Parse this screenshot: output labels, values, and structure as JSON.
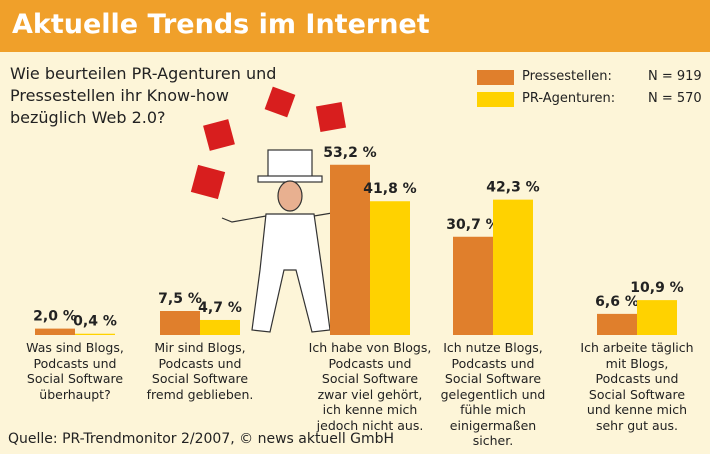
{
  "chart_data": {
    "type": "bar",
    "title": "Aktuelle Trends im Internet",
    "subtitle": "Wie beurteilen PR-Agenturen und\nPressestellen ihr Know-how\nbezüglich Web 2.0?",
    "source": "Quelle: PR-Trendmonitor 2/2007, © news aktuell GmbH",
    "categories": [
      "Was sind Blogs,\nPodcasts und\nSocial Software\nüberhaupt?",
      "Mir sind Blogs,\nPodcasts und\nSocial Software\nfremd geblieben.",
      "Ich habe von Blogs,\nPodcasts  und\nSocial Software\nzwar viel gehört,\nich kenne mich\njedoch nicht aus.",
      "Ich nutze Blogs,\nPodcasts und\nSocial Software\ngelegentlich und\nfühle mich\neinigermaßen\nsicher.",
      "Ich arbeite täglich\nmit Blogs,\nPodcasts und\nSocial Software\nund kenne mich\nsehr gut aus."
    ],
    "series": [
      {
        "name": "Pressestellen:",
        "n": "N = 919",
        "color": "#e07f2c",
        "values": [
          2.0,
          7.5,
          53.2,
          30.7,
          6.6
        ],
        "value_labels": [
          "2,0 %",
          "7,5 %",
          "53,2 %",
          "30,7 %",
          "6,6 %"
        ]
      },
      {
        "name": "PR-Agenturen:",
        "n": "N = 570",
        "color": "#ffd200",
        "values": [
          0.4,
          4.7,
          41.8,
          42.3,
          10.9
        ],
        "value_labels": [
          "0,4 %",
          "4,7 %",
          "41,8 %",
          "42,3 %",
          "10,9 %"
        ]
      }
    ]
  }
}
